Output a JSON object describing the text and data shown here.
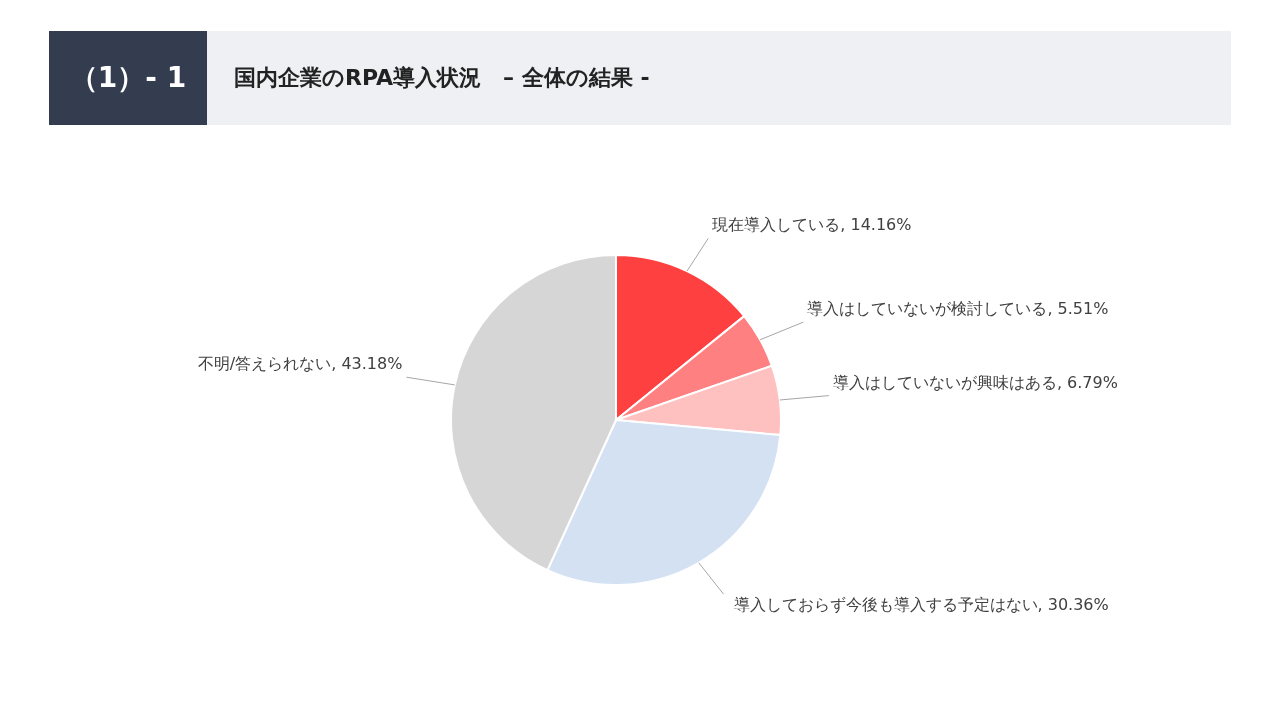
{
  "chart_data": {
    "type": "pie",
    "title": "国内企業のRPA導入状況　– 全体の結果 -",
    "annotations": [
      "（1）- 1"
    ],
    "categories": [
      "現在導入している",
      "導入はしていないが検討している",
      "導入はしていないが興味はある",
      "導入しておらず今後も導入する予定はない",
      "不明/答えられない"
    ],
    "values": [
      14.16,
      5.51,
      6.79,
      30.36,
      43.18
    ],
    "colors": [
      "#ff4040",
      "#ff8080",
      "#ffc0c0",
      "#d3e1f3",
      "#d6d6d6"
    ],
    "value_labels": [
      ", 14.16%",
      ", 5.51%",
      ", 6.79%",
      ", 30.36%",
      ", 43.18%"
    ],
    "legend": false
  }
}
